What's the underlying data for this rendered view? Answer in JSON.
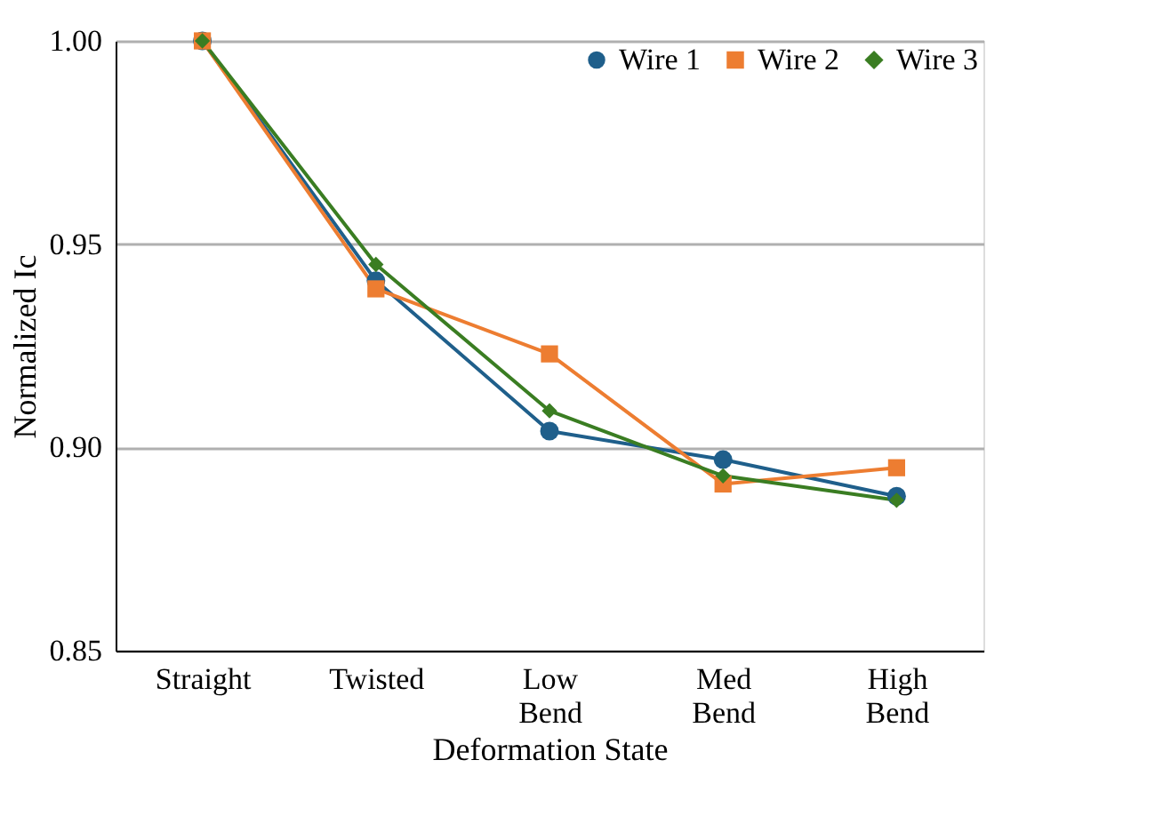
{
  "chart_data": {
    "type": "line",
    "xlabel": "Deformation State",
    "ylabel": "Normalized Ic",
    "categories": [
      "Straight",
      "Twisted",
      "Low Bend",
      "Med Bend",
      "High Bend"
    ],
    "series": [
      {
        "name": "Wire 1",
        "color": "#1f5f8b",
        "marker": "circle",
        "values": [
          1.0,
          0.941,
          0.904,
          0.897,
          0.888
        ]
      },
      {
        "name": "Wire 2",
        "color": "#ed7d31",
        "marker": "square",
        "values": [
          1.0,
          0.939,
          0.923,
          0.891,
          0.895
        ]
      },
      {
        "name": "Wire 3",
        "color": "#3a7d22",
        "marker": "diamond",
        "values": [
          1.0,
          0.945,
          0.909,
          0.893,
          0.887
        ]
      }
    ],
    "ylim": [
      0.85,
      1.0
    ],
    "yticks": [
      {
        "value": 0.85,
        "label": "0.85"
      },
      {
        "value": 0.9,
        "label": "0.90"
      },
      {
        "value": 0.95,
        "label": "0.95"
      },
      {
        "value": 1.0,
        "label": "1.00"
      }
    ],
    "grid": "y",
    "legend": "top right",
    "line_style": "solid"
  }
}
